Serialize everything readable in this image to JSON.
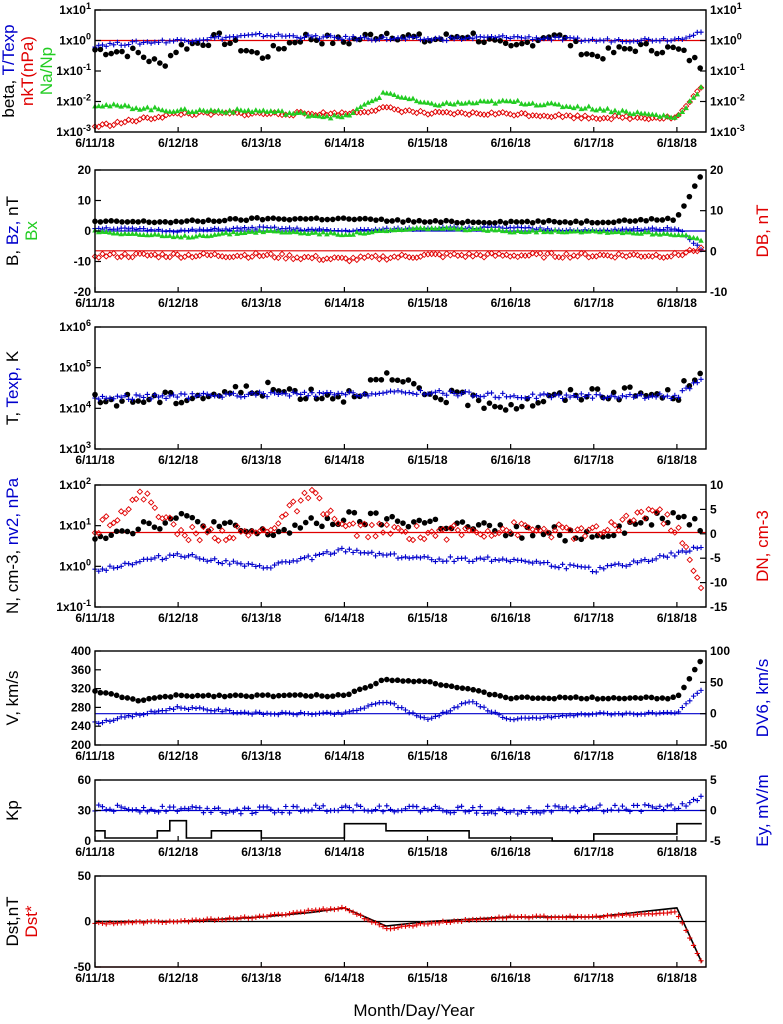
{
  "colors": {
    "black": "#000000",
    "red": "#e00000",
    "blue": "#0000cc",
    "green": "#22cc22"
  },
  "x_axis": {
    "xlabel": "Month/Day/Year",
    "ticks": [
      "6/11/18",
      "6/12/18",
      "6/13/18",
      "6/14/18",
      "6/15/18",
      "6/16/18",
      "6/17/18",
      "6/18/18"
    ],
    "range_days": [
      0,
      7.35
    ]
  },
  "chart_data": [
    {
      "id": "beta",
      "type": "scatter",
      "left_label": [
        {
          "text": "beta, ",
          "color": "#000000"
        },
        {
          "text": "T/Texp",
          "color": "#0000cc"
        }
      ],
      "left_label_2": [
        {
          "text": "nkT(nPa)",
          "color": "#e00000"
        }
      ],
      "left_label_3": [
        {
          "text": "Na/Np",
          "color": "#22cc22"
        }
      ],
      "y_scale": "log",
      "ylim": [
        0.001,
        10
      ],
      "yticks": [
        "1x10-3",
        "1x10-2",
        "1x10-1",
        "1x100",
        "1x101"
      ],
      "right_yticks": [
        "1x10-3",
        "1x10-2",
        "1x10-1",
        "1x100",
        "1x101"
      ],
      "reference_lines": [
        {
          "value": 1,
          "color": "#e00000"
        }
      ],
      "series": [
        {
          "marker": "dot",
          "color": "#000000",
          "style": "beta",
          "x": [
            0.0,
            0.5,
            0.8,
            1.0,
            1.5,
            2.0,
            2.5,
            3.0,
            3.5,
            4.0,
            4.5,
            5.0,
            5.5,
            6.0,
            6.5,
            7.0,
            7.3
          ],
          "y": [
            0.5,
            0.4,
            0.15,
            0.6,
            1.2,
            0.3,
            1.3,
            0.9,
            1.8,
            1.0,
            1.6,
            0.5,
            1.8,
            0.3,
            0.6,
            0.5,
            0.15
          ]
        },
        {
          "marker": "plus",
          "color": "#0000cc",
          "x": [
            0.0,
            1.0,
            2.0,
            3.0,
            4.0,
            5.0,
            6.0,
            7.0,
            7.3
          ],
          "y": [
            0.7,
            1.0,
            1.5,
            1.2,
            1.1,
            1.3,
            1.0,
            1.1,
            2.0
          ]
        },
        {
          "marker": "diamond",
          "color": "#e00000",
          "x": [
            0.0,
            1.0,
            2.0,
            3.0,
            3.5,
            4.0,
            5.0,
            6.0,
            7.0,
            7.3
          ],
          "y": [
            0.0015,
            0.004,
            0.004,
            0.004,
            0.006,
            0.004,
            0.004,
            0.003,
            0.003,
            0.03
          ]
        },
        {
          "marker": "triangle",
          "color": "#22cc22",
          "x": [
            0.0,
            1.0,
            2.0,
            3.0,
            3.5,
            4.0,
            5.0,
            6.0,
            7.0,
            7.3
          ],
          "y": [
            0.008,
            0.005,
            0.005,
            0.003,
            0.02,
            0.008,
            0.01,
            0.006,
            0.003,
            0.03
          ]
        }
      ]
    },
    {
      "id": "B",
      "type": "scatter",
      "left_label": [
        {
          "text": "B, ",
          "color": "#000000"
        },
        {
          "text": "Bz, ",
          "color": "#0000cc"
        },
        {
          "text": "nT",
          "color": "#000000"
        }
      ],
      "left_label_2": [
        {
          "text": "Bx",
          "color": "#22cc22"
        }
      ],
      "right_label": [
        {
          "text": "DB, nT",
          "color": "#e00000"
        }
      ],
      "y_scale": "linear",
      "ylim": [
        -20,
        20
      ],
      "yticks": [
        "-20",
        "-10",
        "0",
        "10",
        "20"
      ],
      "right_ylim": [
        -10,
        20
      ],
      "right_yticks": [
        "-10",
        "0",
        "10",
        "20"
      ],
      "reference_lines": [
        {
          "value": 0,
          "color": "#0000cc"
        },
        {
          "value": -6.5,
          "color": "#e00000"
        }
      ],
      "series": [
        {
          "marker": "dot",
          "color": "#000000",
          "x": [
            0.0,
            1.0,
            2.0,
            3.0,
            4.0,
            5.0,
            6.0,
            7.0,
            7.3
          ],
          "y": [
            3,
            3,
            4,
            4,
            3,
            3,
            3,
            4,
            19
          ]
        },
        {
          "marker": "plus",
          "color": "#0000cc",
          "x": [
            0.0,
            1.0,
            2.0,
            3.0,
            4.0,
            5.0,
            6.0,
            7.0,
            7.3
          ],
          "y": [
            1,
            0,
            1,
            0,
            1,
            1,
            0,
            1,
            -6
          ]
        },
        {
          "marker": "triangle",
          "color": "#22cc22",
          "x": [
            0.0,
            1.0,
            2.0,
            3.0,
            4.0,
            5.0,
            6.0,
            7.0,
            7.3
          ],
          "y": [
            0,
            -2,
            0,
            -1,
            1,
            0,
            0,
            -1,
            -3
          ]
        },
        {
          "marker": "diamond",
          "color": "#e00000",
          "axis": "right",
          "x": [
            0.0,
            1.0,
            2.0,
            3.0,
            4.0,
            5.0,
            6.0,
            7.0,
            7.3
          ],
          "y": [
            -1,
            -1,
            -1,
            -2,
            -1,
            -1,
            -1,
            -1,
            1
          ]
        }
      ]
    },
    {
      "id": "T",
      "type": "scatter",
      "left_label": [
        {
          "text": "T, ",
          "color": "#000000"
        },
        {
          "text": "Texp, ",
          "color": "#0000cc"
        },
        {
          "text": "K",
          "color": "#000000"
        }
      ],
      "y_scale": "log",
      "ylim": [
        1000,
        1000000
      ],
      "yticks": [
        "1x103",
        "1x104",
        "1x105",
        "1x106"
      ],
      "series": [
        {
          "marker": "dot",
          "color": "#000000",
          "x": [
            0.0,
            1.0,
            2.0,
            3.0,
            3.5,
            4.0,
            5.0,
            6.0,
            7.0,
            7.3
          ],
          "y": [
            15000,
            18000,
            30000,
            20000,
            55000,
            22000,
            12000,
            25000,
            20000,
            110000
          ]
        },
        {
          "marker": "plus",
          "color": "#0000cc",
          "x": [
            0.0,
            1.0,
            2.0,
            3.0,
            4.0,
            5.0,
            6.0,
            7.0,
            7.3
          ],
          "y": [
            18000,
            20000,
            22000,
            22000,
            25000,
            20000,
            20000,
            20000,
            50000
          ]
        }
      ]
    },
    {
      "id": "N",
      "type": "scatter",
      "left_label": [
        {
          "text": "N, cm-3, ",
          "color": "#000000"
        },
        {
          "text": "nv2, nPa",
          "color": "#0000cc"
        }
      ],
      "right_label": [
        {
          "text": "DN, cm-3",
          "color": "#e00000"
        }
      ],
      "y_scale": "log",
      "ylim": [
        0.1,
        100
      ],
      "yticks": [
        "1x10-1",
        "1x100",
        "1x101",
        "1x102"
      ],
      "right_ylim": [
        -15,
        10
      ],
      "right_yticks": [
        "-15",
        "-10",
        "-5",
        "0",
        "5",
        "10"
      ],
      "reference_lines": [
        {
          "value": 6.8,
          "color": "#e00000"
        }
      ],
      "series": [
        {
          "marker": "dot",
          "color": "#000000",
          "x": [
            0.0,
            1.0,
            2.0,
            3.0,
            4.0,
            5.0,
            6.0,
            7.0,
            7.3
          ],
          "y": [
            6,
            15,
            6,
            15,
            12,
            7,
            6,
            20,
            10
          ]
        },
        {
          "marker": "plus",
          "color": "#0000cc",
          "x": [
            0.0,
            1.0,
            2.0,
            3.0,
            4.0,
            5.0,
            6.0,
            7.0,
            7.3
          ],
          "y": [
            0.8,
            2.0,
            0.9,
            2.5,
            1.5,
            1.5,
            0.8,
            2.0,
            3.0
          ]
        },
        {
          "marker": "diamond",
          "color": "#e00000",
          "axis": "right",
          "x": [
            0.0,
            0.6,
            1.0,
            2.0,
            2.6,
            3.0,
            4.0,
            5.0,
            6.0,
            6.7,
            7.0,
            7.3
          ],
          "y": [
            1,
            8,
            0,
            0,
            8,
            1,
            0,
            1,
            0,
            5,
            1,
            -12
          ]
        }
      ]
    },
    {
      "id": "V",
      "type": "scatter",
      "left_label": [
        {
          "text": "V, km/s",
          "color": "#000000"
        }
      ],
      "right_label": [
        {
          "text": "DV6, km/s",
          "color": "#0000cc"
        }
      ],
      "y_scale": "linear",
      "ylim": [
        200,
        400
      ],
      "yticks": [
        "200",
        "240",
        "280",
        "320",
        "360",
        "400"
      ],
      "right_ylim": [
        -50,
        100
      ],
      "right_yticks": [
        "-50",
        "0",
        "50",
        "100"
      ],
      "reference_lines": [
        {
          "value": 0,
          "color": "#0000cc",
          "axis": "right"
        }
      ],
      "series": [
        {
          "marker": "dot",
          "color": "#000000",
          "x": [
            0.0,
            0.5,
            1.0,
            2.0,
            3.0,
            3.5,
            4.0,
            5.0,
            6.0,
            7.0,
            7.3
          ],
          "y": [
            315,
            295,
            305,
            305,
            305,
            340,
            335,
            300,
            300,
            300,
            385
          ]
        },
        {
          "marker": "plus",
          "color": "#0000cc",
          "axis": "right",
          "x": [
            0.0,
            1.0,
            2.0,
            3.0,
            3.5,
            4.0,
            4.5,
            5.0,
            6.0,
            7.0,
            7.3
          ],
          "y": [
            -15,
            10,
            0,
            0,
            20,
            -10,
            20,
            -10,
            0,
            0,
            40
          ]
        }
      ]
    },
    {
      "id": "Kp",
      "type": "line",
      "left_label": [
        {
          "text": "Kp",
          "color": "#000000"
        }
      ],
      "right_label": [
        {
          "text": "Ey,  mV/m",
          "color": "#0000cc"
        }
      ],
      "y_scale": "linear",
      "ylim": [
        0,
        60
      ],
      "yticks": [
        "0",
        "30",
        "60"
      ],
      "right_ylim": [
        -5,
        5
      ],
      "right_yticks": [
        "-5",
        "0",
        "5"
      ],
      "reference_lines": [
        {
          "value": 0,
          "color": "#0000cc",
          "axis": "right"
        }
      ],
      "series": [
        {
          "marker": "line",
          "color": "#000000",
          "x": [
            0.0,
            0.12,
            0.12,
            0.75,
            0.75,
            0.9,
            0.9,
            1.1,
            1.1,
            1.4,
            1.4,
            2.0,
            2.0,
            3.0,
            3.0,
            3.5,
            3.5,
            4.5,
            4.5,
            5.5,
            5.5,
            6.0,
            6.0,
            7.0,
            7.0,
            7.3
          ],
          "y": [
            10,
            10,
            3,
            3,
            10,
            10,
            20,
            20,
            3,
            3,
            10,
            10,
            3,
            3,
            17,
            17,
            10,
            10,
            3,
            3,
            0,
            0,
            7,
            7,
            17,
            17
          ]
        },
        {
          "marker": "plus",
          "color": "#0000cc",
          "axis": "right",
          "x": [
            0.0,
            1.0,
            2.0,
            3.0,
            4.0,
            5.0,
            6.0,
            7.0,
            7.3
          ],
          "y": [
            0.3,
            0.3,
            0,
            0.5,
            0.2,
            0,
            0.3,
            0.5,
            2
          ]
        }
      ]
    },
    {
      "id": "Dst",
      "type": "line",
      "left_label": [
        {
          "text": "Dst,nT",
          "color": "#000000"
        }
      ],
      "left_label_2": [
        {
          "text": "Dst*",
          "color": "#e00000"
        }
      ],
      "y_scale": "linear",
      "ylim": [
        -50,
        50
      ],
      "yticks": [
        "-50",
        "0",
        "50"
      ],
      "reference_lines": [
        {
          "value": 0,
          "color": "#000000"
        },
        {
          "value": -50,
          "color": "#e00000"
        }
      ],
      "series": [
        {
          "marker": "line",
          "color": "#000000",
          "x": [
            0.0,
            1.0,
            2.0,
            2.6,
            3.0,
            3.5,
            4.0,
            5.0,
            6.0,
            7.0,
            7.3
          ],
          "y": [
            0,
            0,
            5,
            10,
            15,
            -5,
            0,
            5,
            5,
            15,
            -45
          ]
        },
        {
          "marker": "plus",
          "color": "#e00000",
          "x": [
            0.0,
            1.0,
            2.0,
            2.6,
            3.0,
            3.5,
            4.0,
            5.0,
            6.0,
            7.0,
            7.3
          ],
          "y": [
            -2,
            0,
            5,
            12,
            15,
            -8,
            -2,
            5,
            5,
            10,
            -45
          ]
        }
      ]
    }
  ]
}
